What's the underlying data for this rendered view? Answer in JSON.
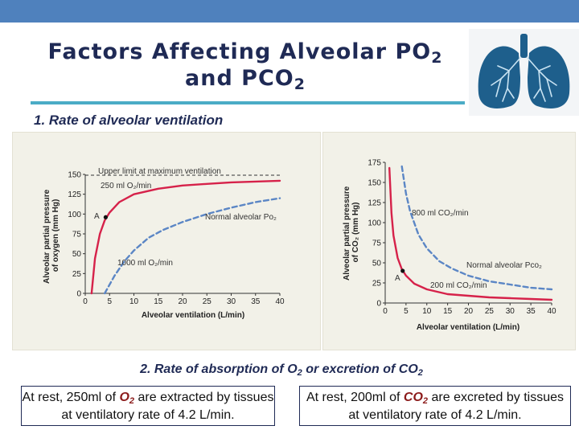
{
  "slide": {
    "title_line1": "Factors Affecting Alveolar PO",
    "title_line1_sub": "2",
    "title_line2": "and PCO",
    "title_line2_sub": "2",
    "factor1": "1.  Rate of alveolar ventilation",
    "factor2_pre": "2.  Rate of absorption of O",
    "factor2_sub1": "2",
    "factor2_mid": " or excretion of CO",
    "factor2_sub2": "2",
    "box_left": {
      "pre": "At rest, 250ml of ",
      "gas": "O",
      "gas_sub": "2",
      "post": " are extracted by tissues at ventilatory rate of 4.2 L/min."
    },
    "box_right": {
      "pre": "At rest, 200ml of ",
      "gas": "CO",
      "gas_sub": "2",
      "post": " are excreted by tissues at ventilatory rate of 4.2 L/min."
    },
    "colors": {
      "top_bar": "#4f81bd",
      "title_rule": "#4bacc6",
      "title_text": "#1f2a55",
      "chart_panel": "#f2f1e8",
      "red_curve": "#d6224a",
      "blue_curve": "#5b86c5",
      "lung_fill": "#1e5f8c"
    },
    "icons": [
      "lungs-icon"
    ]
  },
  "chart_data": [
    {
      "type": "line",
      "xlabel": "Alveolar ventilation (L/min)",
      "ylabel": "Alveolar partial pressure of oxygen (mm Hg)",
      "xlim": [
        0,
        40
      ],
      "ylim": [
        0,
        150
      ],
      "x_ticks": [
        0,
        5,
        10,
        15,
        20,
        25,
        30,
        35,
        40
      ],
      "y_ticks": [
        0,
        25,
        50,
        75,
        100,
        125,
        150
      ],
      "x_tick_labels": [
        "0",
        "5",
        "10",
        "15",
        "20",
        "25",
        "30",
        "35",
        "40"
      ],
      "y_tick_labels": [
        "0",
        "25",
        "50",
        "75",
        "100",
        "125",
        "150"
      ],
      "reference_line": {
        "label": "Upper limit at maximum ventilation",
        "y": 149
      },
      "series": [
        {
          "name": "250 ml O₂/min",
          "style": "solid",
          "x": [
            1.3,
            2,
            3,
            4,
            5,
            7,
            10,
            15,
            20,
            25,
            30,
            35,
            40
          ],
          "y": [
            0,
            44,
            75,
            92,
            102,
            115,
            125,
            132,
            136,
            138,
            140,
            141,
            142
          ]
        },
        {
          "name": "1000 ml O₂/min",
          "style": "dashed",
          "x": [
            4,
            6,
            8,
            10,
            13,
            16,
            20,
            25,
            30,
            35,
            40
          ],
          "y": [
            0,
            22,
            40,
            54,
            70,
            80,
            90,
            100,
            108,
            115,
            120
          ]
        }
      ],
      "annotations": [
        {
          "text": "A",
          "x": 4.2,
          "y": 96,
          "note": "point A marked on 250 ml O₂/min curve"
        },
        {
          "text": "Normal alveolar Po₂"
        }
      ]
    },
    {
      "type": "line",
      "xlabel": "Alveolar ventilation (L/min)",
      "ylabel": "Alveolar partial pressure of CO₂ (mm Hg)",
      "xlim": [
        0,
        40
      ],
      "ylim": [
        0,
        175
      ],
      "x_ticks": [
        0,
        5,
        10,
        15,
        20,
        25,
        30,
        35,
        40
      ],
      "y_ticks": [
        0,
        25,
        50,
        75,
        100,
        125,
        150,
        175
      ],
      "x_tick_labels": [
        "0",
        "5",
        "10",
        "15",
        "20",
        "25",
        "30",
        "35",
        "40"
      ],
      "y_tick_labels": [
        "0",
        "25",
        "50",
        "75",
        "100",
        "125",
        "150",
        "175"
      ],
      "series": [
        {
          "name": "200 ml CO₂/min",
          "style": "solid",
          "x": [
            1,
            1.5,
            2,
            3,
            4,
            5,
            7,
            10,
            15,
            20,
            25,
            30,
            35,
            40
          ],
          "y": [
            168,
            112,
            84,
            56,
            42,
            34,
            24,
            17,
            11,
            9,
            7,
            6,
            5,
            4
          ]
        },
        {
          "name": "800 ml CO₂/min",
          "style": "dashed",
          "x": [
            4,
            5,
            6,
            8,
            10,
            13,
            16,
            20,
            25,
            30,
            35,
            40
          ],
          "y": [
            170,
            136,
            114,
            85,
            68,
            52,
            43,
            34,
            27,
            23,
            19,
            17
          ]
        }
      ],
      "annotations": [
        {
          "text": "A",
          "x": 4.2,
          "y": 40,
          "note": "point A marked on 200 ml CO₂/min curve"
        },
        {
          "text": "Normal alveolar Pco₂"
        }
      ]
    }
  ]
}
